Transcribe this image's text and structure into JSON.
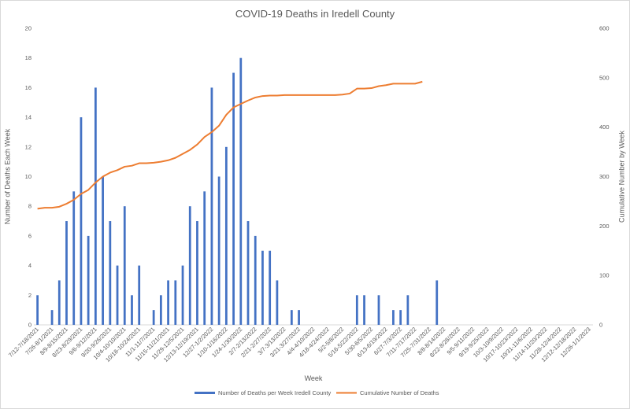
{
  "chart_data": {
    "type": "bar",
    "title": "COVID-19 Deaths in Iredell County",
    "xlabel": "Week",
    "ylabel": "Number of Deaths Each Week",
    "y2label": "Cumulative Number  by Week",
    "ylim": [
      0,
      20
    ],
    "y2lim": [
      0,
      600
    ],
    "yticks": [
      0,
      2,
      4,
      6,
      8,
      10,
      12,
      14,
      16,
      18,
      20
    ],
    "y2ticks": [
      0,
      100,
      200,
      300,
      400,
      500,
      600
    ],
    "grid": false,
    "legend": "bottom",
    "categories": [
      "7/12-7/18/2021",
      "7/19-7/25/2021",
      "7/26-8/1/2021",
      "8/2-8/8/2021",
      "8/9-8/15/2021",
      "8/16-8/22/2021",
      "8/23-8/29/2021",
      "8/30-9/5/2021",
      "9/6-9/12/2021",
      "9/13-9/19/2021",
      "9/20-9/26/2021",
      "9/27-10/3/2021",
      "10/4-10/10/2021",
      "10/11-10/17/2021",
      "10/18-10/24/2021",
      "10/25-10/31/2021",
      "11/1-11/7/2021",
      "11/8-11/14/2021",
      "11/15-11/21/2021",
      "11/22-11/28/2021",
      "11/29-12/5/2021",
      "12/6-12/12/2021",
      "12/13-12/19/2021",
      "12/20-12/26/2021",
      "12/27-1/2/2022",
      "1/3-1/9/2022",
      "1/10-1/16/2022",
      "1/17-1/23/2022",
      "1/24-1/30/2022",
      "1/31-2/6/2022",
      "2/7-2/13/2022",
      "2/14-2/20/2022",
      "2/21-2/27/2022",
      "2/28-3/6/2022",
      "3/7-3/13/2022",
      "3/14-3/20/2022",
      "3/21-3/27/2022",
      "3/28-4/3/2022",
      "4/4-4/10/2022",
      "4/11-4/17/2022",
      "4/18-4/24/2022",
      "4/25-5/1/2022",
      "5/2-5/8/2022",
      "5/9-5/15/2022",
      "5/16-5/22/2022",
      "5/23-5/29/2022",
      "5/30-6/5/2022",
      "6/6-6/12/2022",
      "6/13-6/19/2022",
      "6/20-6/26/2022",
      "6/27-7/3/2022",
      "7/4-7/10/2022",
      "7/11-7/17/2022",
      "7/18-7/24/2022",
      "7/25-7/31/2022",
      "8/1-8/7/2022",
      "8/8-8/14/2022",
      "8/15-8/21/2022",
      "8/22-8/28/2022",
      "8/29-9/4/2022",
      "9/5-9/11/2022",
      "9/12-9/18/2022",
      "9/19-9/25/2022",
      "9/26-10/2/2022",
      "10/3-10/9/2022",
      "10/10-10/16/2022",
      "10/17-10/23/2022",
      "10/24-10/30/2022",
      "10/31-11/6/2022",
      "11/7-11/13/2022",
      "11/14-11/20/2022",
      "11/21-11/27/2022",
      "11/28-12/4/2022",
      "12/5-12/11/2022",
      "12/12-12/18/2022",
      "12/19-12/25/2022",
      "12/26-1/1/2023"
    ],
    "tick_labels": [
      "7/12-7/18/2021",
      "7/26-8/1/2021",
      "8/9-8/15/2021",
      "8/23-8/29/2021",
      "9/6-9/12/2021",
      "9/20-9/26/2021",
      "10/4-10/10/2021",
      "10/18-10/24/2021",
      "11/1-11/7/2021",
      "11/15-11/21/2021",
      "11/29-12/5/2021",
      "12/13-12/19/2021",
      "12/27-1/2/2022",
      "1/10-1/16/2022",
      "1/24-1/30/2022",
      "2/7-2/13/2022",
      "2/21-2/27/2022",
      "3/7-3/13/2022",
      "3/21-3/27/2022",
      "4/4-4/10/2022",
      "4/18-4/24/2022",
      "5/2-5/8/2022",
      "5/16-5/22/2022",
      "5/30-6/5/2022",
      "6/13-6/19/2022",
      "6/27-7/3/2022",
      "7/11-7/17/2022",
      "7/25-7/31/2022",
      "8/8-8/14/2022",
      "8/22-8/28/2022",
      "9/5-9/11/2022",
      "9/19-9/25/2022",
      "10/3-10/9/2022",
      "10/17-10/23/2022",
      "10/31-11/6/2022",
      "11/14-11/20/2022",
      "11/28-12/4/2022",
      "12/12-12/18/2022",
      "12/26-1/1/2023"
    ],
    "series": [
      {
        "name": "Number of Deaths per Week Iredell County",
        "type": "bar",
        "axis": "left",
        "color": "#4472c4",
        "values": [
          2,
          0,
          1,
          3,
          7,
          9,
          14,
          6,
          16,
          10,
          7,
          4,
          8,
          2,
          4,
          0,
          1,
          2,
          3,
          3,
          4,
          8,
          7,
          9,
          16,
          10,
          12,
          17,
          18,
          7,
          6,
          5,
          5,
          3,
          0,
          1,
          1,
          0,
          0,
          0,
          0,
          0,
          0,
          0,
          2,
          2,
          0,
          2,
          0,
          1,
          1,
          2,
          0,
          0,
          0,
          3,
          null,
          null,
          null,
          null,
          null,
          null,
          null,
          null,
          null,
          null,
          null,
          null,
          null,
          null,
          null,
          null,
          null,
          null,
          null,
          null,
          null
        ]
      },
      {
        "name": "Cumulative Number of Deaths",
        "type": "line",
        "axis": "right",
        "color": "#ed7d31",
        "values": [
          235,
          237,
          237,
          239,
          245,
          253,
          265,
          273,
          288,
          300,
          308,
          313,
          320,
          322,
          327,
          327,
          328,
          330,
          333,
          338,
          346,
          354,
          365,
          380,
          390,
          403,
          425,
          440,
          447,
          454,
          460,
          463,
          464,
          464,
          465,
          465,
          465,
          465,
          465,
          465,
          465,
          465,
          466,
          468,
          478,
          478,
          479,
          483,
          485,
          488,
          488,
          488,
          488,
          492,
          null,
          null,
          null,
          null,
          null,
          null,
          null,
          null,
          null,
          null,
          null,
          null,
          null,
          null,
          null,
          null,
          null,
          null,
          null,
          null,
          null,
          null,
          null
        ]
      }
    ]
  }
}
